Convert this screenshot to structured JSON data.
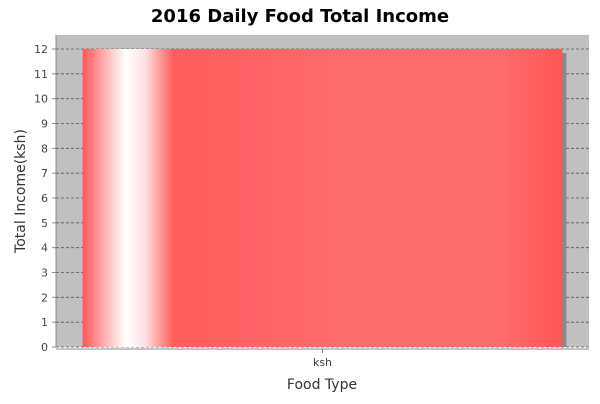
{
  "chart_data": {
    "type": "bar",
    "title": "2016 Daily Food Total Income",
    "xlabel": "Food Type",
    "ylabel": "Total Income(ksh)",
    "categories": [
      "ksh"
    ],
    "values": [
      12
    ],
    "ylim": [
      0,
      12
    ],
    "yticks": [
      0,
      1,
      2,
      3,
      4,
      5,
      6,
      7,
      8,
      9,
      10,
      11,
      12
    ],
    "grid": true,
    "legend": "none",
    "colors": {
      "plot_background": "#c0c0c0",
      "bar": "#ff5555",
      "grid": "#555555"
    }
  }
}
